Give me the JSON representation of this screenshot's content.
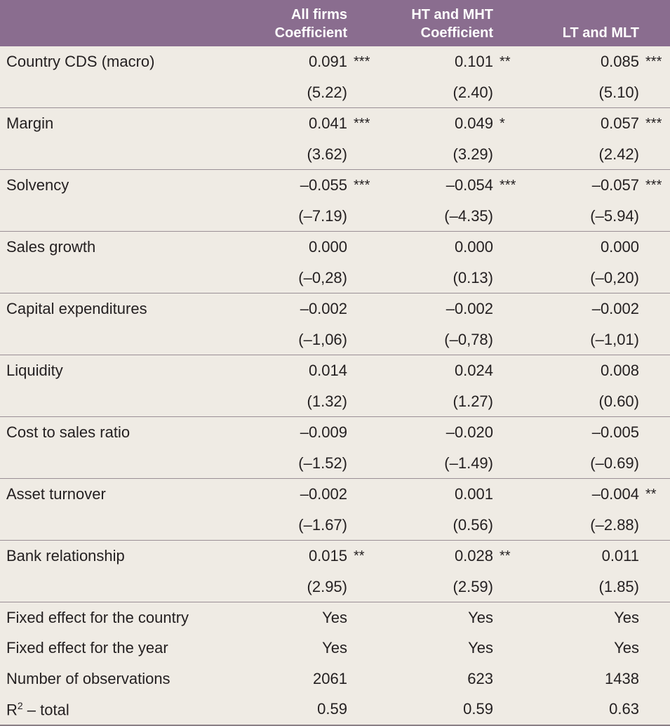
{
  "headers": [
    {
      "line1": "",
      "line2": ""
    },
    {
      "line1": "All firms",
      "line2": "Coefficient"
    },
    {
      "line1": "HT and MHT",
      "line2": "Coefficient"
    },
    {
      "line1": "",
      "line2": "LT and MLT"
    }
  ],
  "rows": [
    {
      "label": "Country CDS (macro)",
      "coef": [
        "0.091",
        "0.101",
        "0.085"
      ],
      "sig": [
        "***",
        "**",
        "***"
      ],
      "t": [
        "(5.22)",
        "(2.40)",
        "(5.10)"
      ]
    },
    {
      "label": "Margin",
      "coef": [
        "0.041",
        "0.049",
        "0.057"
      ],
      "sig": [
        "***",
        "*",
        "***"
      ],
      "t": [
        "(3.62)",
        "(3.29)",
        "(2.42)"
      ]
    },
    {
      "label": "Solvency",
      "coef": [
        "–0.055",
        "–0.054",
        "–0.057"
      ],
      "sig": [
        "***",
        "***",
        "***"
      ],
      "t": [
        "(–7.19)",
        "(–4.35)",
        "(–5.94)"
      ]
    },
    {
      "label": "Sales growth",
      "coef": [
        "0.000",
        "0.000",
        "0.000"
      ],
      "sig": [
        "",
        "",
        ""
      ],
      "t": [
        "(–0,28)",
        "(0.13)",
        "(–0,20)"
      ]
    },
    {
      "label": "Capital expenditures",
      "coef": [
        "–0.002",
        "–0.002",
        "–0.002"
      ],
      "sig": [
        "",
        "",
        ""
      ],
      "t": [
        "(–1,06)",
        "(–0,78)",
        "(–1,01)"
      ]
    },
    {
      "label": "Liquidity",
      "coef": [
        "0.014",
        "0.024",
        "0.008"
      ],
      "sig": [
        "",
        "",
        ""
      ],
      "t": [
        "(1.32)",
        "(1.27)",
        "(0.60)"
      ]
    },
    {
      "label": "Cost to sales ratio",
      "coef": [
        "–0.009",
        "–0.020",
        "–0.005"
      ],
      "sig": [
        "",
        "",
        ""
      ],
      "t": [
        "(–1.52)",
        "(–1.49)",
        "(–0.69)"
      ]
    },
    {
      "label": "Asset turnover",
      "coef": [
        "–0.002",
        "0.001",
        "–0.004"
      ],
      "sig": [
        "",
        "",
        "**"
      ],
      "t": [
        "(–1.67)",
        "(0.56)",
        "(–2.88)"
      ]
    },
    {
      "label": "Bank relationship",
      "coef": [
        "0.015",
        "0.028",
        "0.011"
      ],
      "sig": [
        "**",
        "**",
        ""
      ],
      "t": [
        "(2.95)",
        "(2.59)",
        "(1.85)"
      ]
    }
  ],
  "footer": [
    {
      "label": "Fixed effect for the country",
      "values": [
        "Yes",
        "Yes",
        "Yes"
      ]
    },
    {
      "label": "Fixed effect for the year",
      "values": [
        "Yes",
        "Yes",
        "Yes"
      ]
    },
    {
      "label": "Number of observations",
      "values": [
        "2061",
        "623",
        "1438"
      ]
    },
    {
      "label": "R",
      "label_sup": "2",
      "label_suffix": " – total",
      "values": [
        "0.59",
        "0.59",
        "0.63"
      ]
    }
  ]
}
